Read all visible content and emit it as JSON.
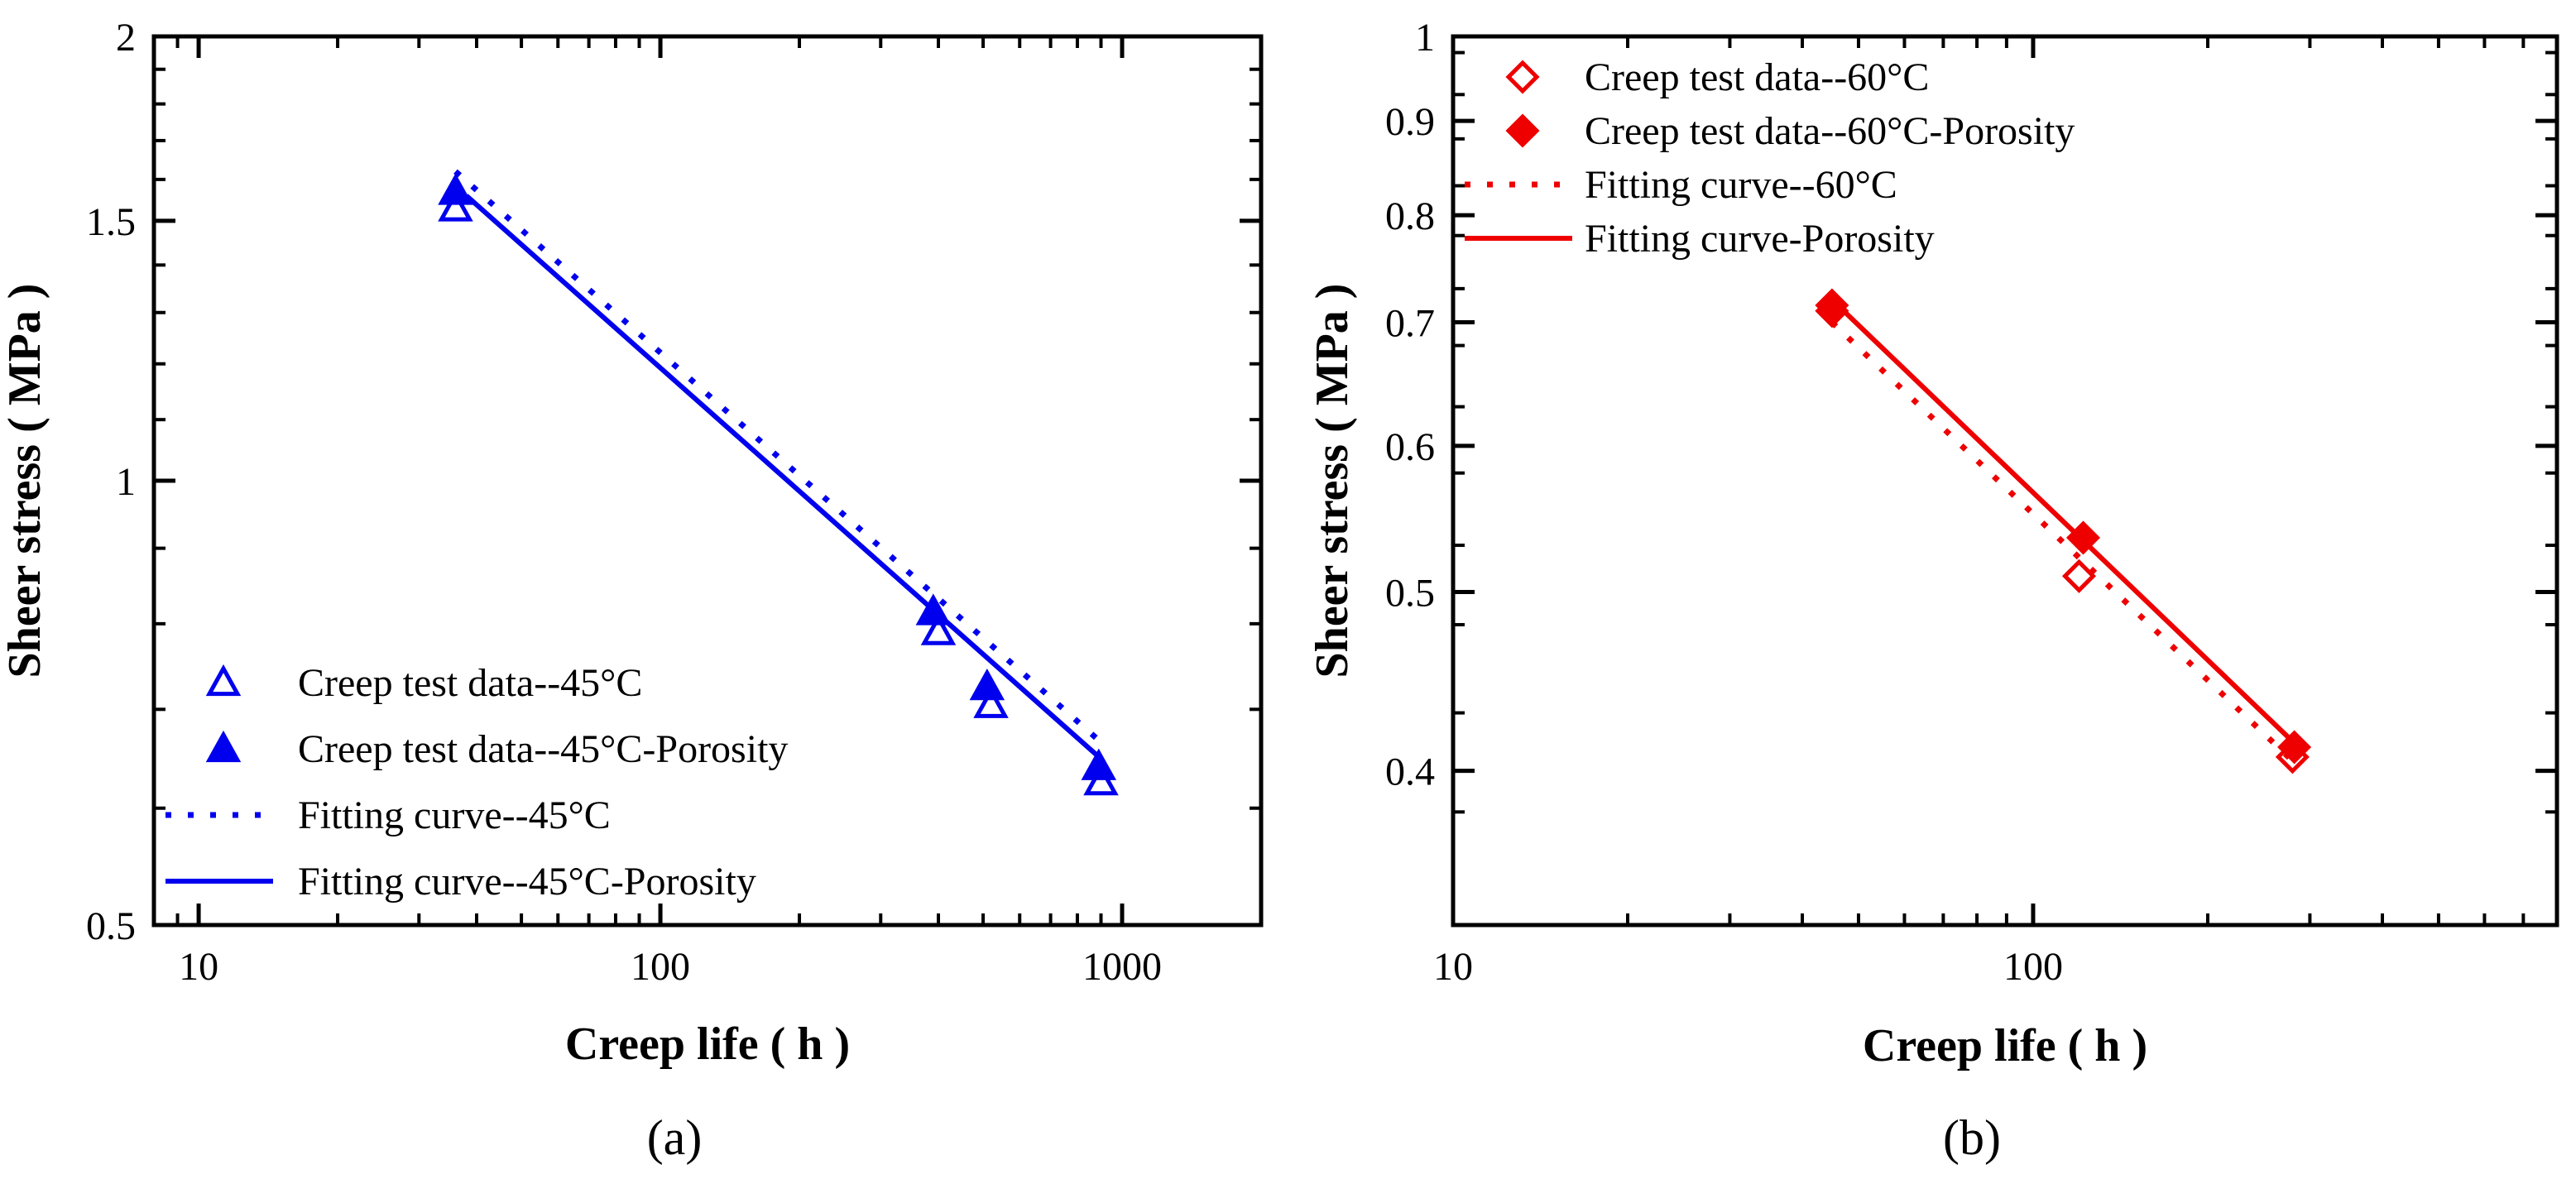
{
  "chart_data": [
    {
      "type": "scatter",
      "panel_label": "(a)",
      "xlabel": "Creep life ( h )",
      "ylabel": "Sheer stress ( MPa )",
      "xscale": "log",
      "yscale": "log",
      "xlim": [
        8,
        2000
      ],
      "ylim": [
        0.5,
        2
      ],
      "xticks": [
        {
          "v": 10,
          "label": "10"
        },
        {
          "v": 100,
          "label": "100"
        },
        {
          "v": 1000,
          "label": "1000"
        }
      ],
      "yticks": [
        {
          "v": 0.5,
          "label": "0.5"
        },
        {
          "v": 1,
          "label": "1"
        },
        {
          "v": 1.5,
          "label": "1.5"
        },
        {
          "v": 2,
          "label": "2"
        }
      ],
      "legend_position": "bottom-left",
      "color": "#0000EE",
      "series": [
        {
          "name": "Creep test data--45°C",
          "kind": "markers",
          "marker": "open-triangle",
          "x": [
            36,
            400,
            520,
            900
          ],
          "y": [
            1.53,
            0.79,
            0.705,
            0.625
          ]
        },
        {
          "name": "Creep test data--45°C-Porosity",
          "kind": "markers",
          "marker": "filled-triangle",
          "x": [
            36,
            390,
            510,
            890
          ],
          "y": [
            1.57,
            0.815,
            0.725,
            0.64
          ]
        },
        {
          "name": "Fitting curve--45°C",
          "kind": "line",
          "style": "dotted",
          "x": [
            36,
            900
          ],
          "y": [
            1.62,
            0.665
          ]
        },
        {
          "name": "Fitting curve--45°C-Porosity",
          "kind": "line",
          "style": "solid",
          "x": [
            38,
            900
          ],
          "y": [
            1.56,
            0.648
          ]
        }
      ]
    },
    {
      "type": "scatter",
      "panel_label": "(b)",
      "xlabel": "Creep life ( h )",
      "ylabel": "Sheer stress ( MPa )",
      "xscale": "log",
      "yscale": "log",
      "xlim": [
        10,
        800
      ],
      "ylim": [
        0.33,
        1.0
      ],
      "xticks": [
        {
          "v": 10,
          "label": "10"
        },
        {
          "v": 100,
          "label": "100"
        }
      ],
      "yticks": [
        {
          "v": 0.4,
          "label": "0.4"
        },
        {
          "v": 0.5,
          "label": "0.5"
        },
        {
          "v": 0.6,
          "label": "0.6"
        },
        {
          "v": 0.7,
          "label": "0.7"
        },
        {
          "v": 0.8,
          "label": "0.8"
        },
        {
          "v": 0.9,
          "label": "0.9"
        },
        {
          "v": 1,
          "label": "1"
        }
      ],
      "legend_position": "top-left",
      "color": "#EE0000",
      "series": [
        {
          "name": "Creep test data--60°C",
          "kind": "markers",
          "marker": "open-diamond",
          "x": [
            45,
            120,
            280
          ],
          "y": [
            0.71,
            0.51,
            0.407
          ]
        },
        {
          "name": "Creep test data--60°C-Porosity",
          "kind": "markers",
          "marker": "filled-diamond",
          "x": [
            45,
            122,
            282
          ],
          "y": [
            0.715,
            0.535,
            0.412
          ]
        },
        {
          "name": "Fitting curve--60°C",
          "kind": "line",
          "style": "dotted",
          "x": [
            45,
            280
          ],
          "y": [
            0.7,
            0.405
          ]
        },
        {
          "name": "Fitting curve-Porosity",
          "kind": "line",
          "style": "solid",
          "x": [
            45,
            280
          ],
          "y": [
            0.72,
            0.415
          ]
        }
      ]
    }
  ]
}
